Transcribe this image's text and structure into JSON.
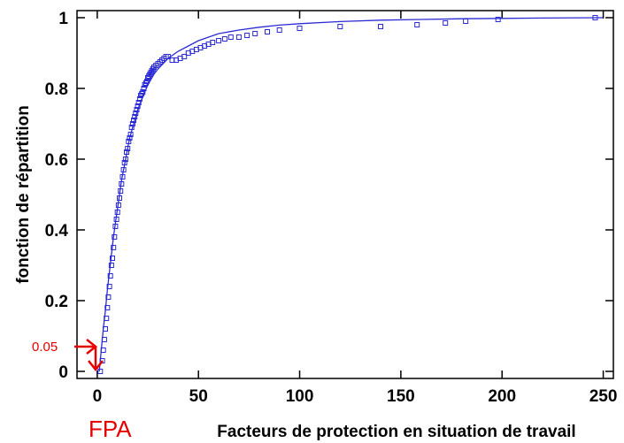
{
  "chart_data": {
    "type": "scatter",
    "title": "",
    "xlabel": "Facteurs de protection en situation de travail",
    "ylabel": "fonction de répartition",
    "xlim": [
      -10,
      255
    ],
    "ylim": [
      -0.02,
      1.02
    ],
    "xticks": [
      0,
      50,
      100,
      150,
      200,
      250
    ],
    "xtick_labels": [
      "0",
      "50",
      "100",
      "150",
      "200",
      "250"
    ],
    "yticks": [
      0,
      0.2,
      0.4,
      0.6,
      0.8,
      1
    ],
    "ytick_labels": [
      "0",
      "0.2",
      "0.4",
      "0.6",
      "0.8",
      "1"
    ],
    "grid": false,
    "colors": {
      "series": "#2b2bd6",
      "annotation": "#e60000",
      "axis": "#000000"
    },
    "series": [
      {
        "style": "markers-square",
        "x": [
          1.5,
          2.5,
          3,
          3.5,
          4,
          4.5,
          5,
          5.5,
          6,
          6.5,
          7,
          7.5,
          8,
          8.5,
          9,
          9.5,
          10,
          10.5,
          11,
          11.5,
          12,
          12.5,
          13,
          13.5,
          14,
          14.5,
          15,
          15.5,
          16,
          16.5,
          17,
          17.5,
          18,
          18.5,
          19,
          19.5,
          20,
          20.5,
          21,
          21.5,
          22,
          22.5,
          23,
          23.5,
          24,
          24.5,
          25,
          25.5,
          26,
          26.5,
          27,
          27.5,
          28,
          29,
          30,
          31,
          32,
          33,
          34,
          35,
          37,
          39,
          41,
          43,
          45,
          47,
          49,
          51,
          53,
          55,
          57,
          60,
          63,
          66,
          70,
          74,
          78,
          84,
          90,
          100,
          120,
          140,
          158,
          172,
          182,
          198,
          246
        ],
        "y": [
          0.0,
          0.03,
          0.06,
          0.09,
          0.12,
          0.15,
          0.18,
          0.21,
          0.24,
          0.27,
          0.3,
          0.32,
          0.35,
          0.38,
          0.41,
          0.43,
          0.45,
          0.47,
          0.49,
          0.51,
          0.53,
          0.55,
          0.57,
          0.59,
          0.6,
          0.62,
          0.63,
          0.65,
          0.66,
          0.67,
          0.69,
          0.7,
          0.71,
          0.72,
          0.73,
          0.74,
          0.75,
          0.76,
          0.77,
          0.78,
          0.785,
          0.79,
          0.8,
          0.81,
          0.815,
          0.82,
          0.83,
          0.835,
          0.84,
          0.845,
          0.85,
          0.855,
          0.86,
          0.865,
          0.87,
          0.875,
          0.88,
          0.885,
          0.89,
          0.89,
          0.88,
          0.88,
          0.885,
          0.89,
          0.9,
          0.905,
          0.91,
          0.915,
          0.92,
          0.925,
          0.93,
          0.935,
          0.94,
          0.945,
          0.945,
          0.95,
          0.955,
          0.96,
          0.965,
          0.97,
          0.975,
          0.975,
          0.98,
          0.985,
          0.99,
          0.995,
          1.0
        ]
      },
      {
        "style": "line",
        "x": [
          1,
          2,
          3,
          4,
          5,
          6,
          8,
          10,
          12,
          14,
          16,
          18,
          20,
          22,
          25,
          28,
          30,
          35,
          40,
          45,
          50,
          60,
          70,
          80,
          90,
          100,
          120,
          140,
          160,
          180,
          200,
          220,
          250
        ],
        "y": [
          0.0,
          0.06,
          0.12,
          0.17,
          0.23,
          0.28,
          0.38,
          0.46,
          0.54,
          0.6,
          0.66,
          0.7,
          0.74,
          0.77,
          0.81,
          0.84,
          0.855,
          0.885,
          0.905,
          0.92,
          0.935,
          0.955,
          0.965,
          0.973,
          0.979,
          0.983,
          0.989,
          0.993,
          0.995,
          0.997,
          0.998,
          0.999,
          1.0
        ]
      }
    ]
  },
  "annotations": {
    "value_label": "0.05",
    "x_label": "FPA"
  }
}
